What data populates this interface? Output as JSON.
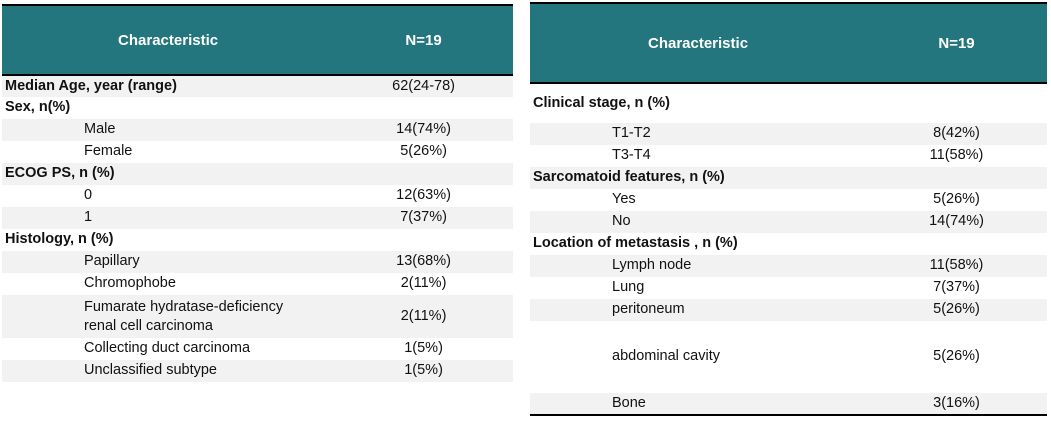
{
  "theme": {
    "header_bg": "#23767d",
    "header_fg": "#ffffff",
    "shade_bg": "#f2f2f2",
    "rule_color": "#000000"
  },
  "tables": [
    {
      "name": "patient-characteristics-left",
      "first_row_shaded": true,
      "header": {
        "characteristic": "Characteristic",
        "n": "N=19"
      },
      "rows": [
        {
          "label": "Median Age, year (range)",
          "value": "62(24-78)",
          "bold": true
        },
        {
          "label": "Sex, n(%)",
          "value": "",
          "bold": true
        },
        {
          "label": "Male",
          "value": "14(74%)",
          "indent": true
        },
        {
          "label": "Female",
          "value": "5(26%)",
          "indent": true
        },
        {
          "label": "ECOG PS, n (%)",
          "value": "",
          "bold": true
        },
        {
          "label": "0",
          "value": "12(63%)",
          "indent": true
        },
        {
          "label": "1",
          "value": "7(37%)",
          "indent": true
        },
        {
          "label": "Histology, n (%)",
          "value": "",
          "bold": true
        },
        {
          "label": "Papillary",
          "value": "13(68%)",
          "indent": true
        },
        {
          "label": "Chromophobe",
          "value": "2(11%)",
          "indent": true
        },
        {
          "label": "Fumarate hydratase-deficiency renal cell carcinoma",
          "value": "2(11%)",
          "indent": true,
          "wrap": true
        },
        {
          "label": "Collecting duct carcinoma",
          "value": "1(5%)",
          "indent": true
        },
        {
          "label": "Unclassified subtype",
          "value": "1(5%)",
          "indent": true
        }
      ]
    },
    {
      "name": "patient-characteristics-right",
      "first_row_shaded": false,
      "header": {
        "characteristic": "Characteristic",
        "n": "N=19"
      },
      "rows": [
        {
          "label": "Clinical stage, n (%)",
          "value": "",
          "bold": true,
          "tall": true
        },
        {
          "label": "T1-T2",
          "value": "8(42%)",
          "indent": true
        },
        {
          "label": "T3-T4",
          "value": "11(58%)",
          "indent": true
        },
        {
          "label": "Sarcomatoid features, n (%)",
          "value": "",
          "bold": true
        },
        {
          "label": "Yes",
          "value": "5(26%)",
          "indent": true
        },
        {
          "label": "No",
          "value": "14(74%)",
          "indent": true
        },
        {
          "label": "Location of metastasis , n (%)",
          "value": "",
          "bold": true
        },
        {
          "label": "Lymph node",
          "value": "11(58%)",
          "indent": true
        },
        {
          "label": "Lung",
          "value": "7(37%)",
          "indent": true
        },
        {
          "label": "peritoneum",
          "value": "5(26%)",
          "indent": true
        },
        {
          "label": "abdominal cavity",
          "value": "5(26%)",
          "indent": true,
          "xtall": true
        },
        {
          "label": "Bone",
          "value": "3(16%)",
          "indent": true
        }
      ]
    }
  ]
}
